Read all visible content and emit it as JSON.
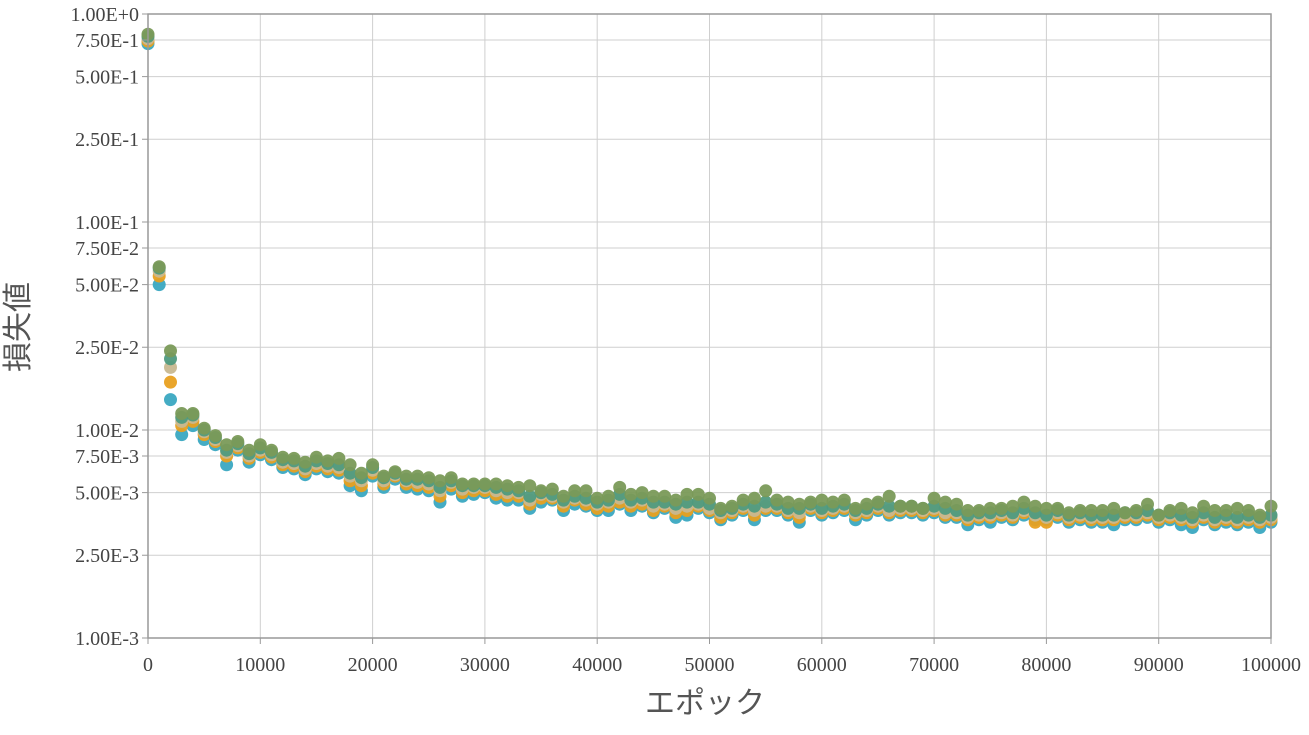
{
  "chart_data": {
    "type": "scatter",
    "title": "",
    "xlabel": "エポック",
    "ylabel": "損失値",
    "xlim": [
      0,
      100000
    ],
    "ylim": [
      0.001,
      1
    ],
    "y_scale": "log",
    "grid": true,
    "x_ticks": [
      0,
      10000,
      20000,
      30000,
      40000,
      50000,
      60000,
      70000,
      80000,
      90000,
      100000
    ],
    "x_tick_labels": [
      "0",
      "10000",
      "20000",
      "30000",
      "40000",
      "50000",
      "60000",
      "70000",
      "80000",
      "90000",
      "100000"
    ],
    "y_ticks": [
      1,
      0.75,
      0.5,
      0.25,
      0.1,
      0.075,
      0.05,
      0.025,
      0.01,
      0.0075,
      0.005,
      0.0025,
      0.001
    ],
    "y_tick_labels": [
      "1.00E+0",
      "7.50E-1",
      "5.00E-1",
      "2.50E-1",
      "1.00E-1",
      "7.50E-2",
      "5.00E-2",
      "2.50E-2",
      "1.00E-2",
      "7.50E-3",
      "5.00E-3",
      "2.50E-3",
      "1.00E-3"
    ],
    "colors": [
      "#3aa8c1",
      "#e8a020",
      "#c8b890",
      "#4f9a7e",
      "#7a9a58"
    ],
    "x": [
      0,
      1000,
      2000,
      3000,
      4000,
      5000,
      6000,
      7000,
      8000,
      9000,
      10000,
      11000,
      12000,
      13000,
      14000,
      15000,
      16000,
      17000,
      18000,
      19000,
      20000,
      21000,
      22000,
      23000,
      24000,
      25000,
      26000,
      27000,
      28000,
      29000,
      30000,
      31000,
      32000,
      33000,
      34000,
      35000,
      36000,
      37000,
      38000,
      39000,
      40000,
      41000,
      42000,
      43000,
      44000,
      45000,
      46000,
      47000,
      48000,
      49000,
      50000,
      51000,
      52000,
      53000,
      54000,
      55000,
      56000,
      57000,
      58000,
      59000,
      60000,
      61000,
      62000,
      63000,
      64000,
      65000,
      66000,
      67000,
      68000,
      69000,
      70000,
      71000,
      72000,
      73000,
      74000,
      75000,
      76000,
      77000,
      78000,
      79000,
      80000,
      81000,
      82000,
      83000,
      84000,
      85000,
      86000,
      87000,
      88000,
      89000,
      90000,
      91000,
      92000,
      93000,
      94000,
      95000,
      96000,
      97000,
      98000,
      99000,
      100000
    ],
    "series": [
      {
        "values": [
          0.72,
          0.05,
          0.014,
          0.0095,
          0.0105,
          0.009,
          0.0085,
          0.0068,
          0.008,
          0.007,
          0.0076,
          0.0072,
          0.0066,
          0.0065,
          0.0061,
          0.0065,
          0.0063,
          0.0062,
          0.0054,
          0.0051,
          0.006,
          0.0053,
          0.0058,
          0.0053,
          0.0052,
          0.0051,
          0.0045,
          0.0052,
          0.0048,
          0.0049,
          0.005,
          0.0047,
          0.0046,
          0.0046,
          0.0042,
          0.0045,
          0.0046,
          0.0041,
          0.0044,
          0.0043,
          0.0041,
          0.0041,
          0.0044,
          0.0041,
          0.0043,
          0.004,
          0.0042,
          0.0038,
          0.0039,
          0.0042,
          0.004,
          0.0037,
          0.0039,
          0.0041,
          0.0037,
          0.0041,
          0.0041,
          0.0039,
          0.0036,
          0.0041,
          0.0039,
          0.004,
          0.0041,
          0.0037,
          0.0039,
          0.0041,
          0.0039,
          0.004,
          0.004,
          0.0039,
          0.004,
          0.0038,
          0.0038,
          0.0035,
          0.0037,
          0.0036,
          0.0038,
          0.0037,
          0.0039,
          0.0037,
          0.0037,
          0.0038,
          0.0036,
          0.0037,
          0.0036,
          0.0036,
          0.0035,
          0.0037,
          0.0037,
          0.0038,
          0.0036,
          0.0037,
          0.0035,
          0.0034,
          0.0037,
          0.0035,
          0.0036,
          0.0035,
          0.0036,
          0.0034,
          0.0036
        ]
      },
      {
        "values": [
          0.74,
          0.055,
          0.017,
          0.0105,
          0.011,
          0.0095,
          0.0088,
          0.0075,
          0.0082,
          0.0073,
          0.0078,
          0.0074,
          0.0068,
          0.0067,
          0.0063,
          0.0067,
          0.0065,
          0.0064,
          0.0057,
          0.0054,
          0.0062,
          0.0055,
          0.006,
          0.0055,
          0.0054,
          0.0053,
          0.0048,
          0.0054,
          0.005,
          0.0051,
          0.0051,
          0.0049,
          0.0048,
          0.0048,
          0.0044,
          0.0047,
          0.0047,
          0.0043,
          0.0046,
          0.0044,
          0.0042,
          0.0043,
          0.0045,
          0.0043,
          0.0044,
          0.0041,
          0.0043,
          0.004,
          0.0041,
          0.0043,
          0.0041,
          0.0038,
          0.004,
          0.0042,
          0.0039,
          0.0042,
          0.0042,
          0.004,
          0.0038,
          0.0042,
          0.004,
          0.0041,
          0.0042,
          0.0039,
          0.004,
          0.0042,
          0.004,
          0.0041,
          0.0041,
          0.004,
          0.0041,
          0.0039,
          0.0039,
          0.0037,
          0.0038,
          0.0038,
          0.0039,
          0.0038,
          0.004,
          0.0036,
          0.0036,
          0.0039,
          0.0037,
          0.0038,
          0.0037,
          0.0037,
          0.0037,
          0.0038,
          0.0038,
          0.0039,
          0.0037,
          0.0038,
          0.0037,
          0.0036,
          0.0038,
          0.0036,
          0.0037,
          0.0036,
          0.0037,
          0.0036,
          0.0037
        ]
      },
      {
        "values": [
          0.76,
          0.058,
          0.02,
          0.011,
          0.0115,
          0.0098,
          0.009,
          0.0078,
          0.0084,
          0.0075,
          0.008,
          0.0076,
          0.007,
          0.0069,
          0.0065,
          0.0069,
          0.0067,
          0.0066,
          0.006,
          0.0057,
          0.0064,
          0.0057,
          0.0061,
          0.0057,
          0.0056,
          0.0055,
          0.0051,
          0.0056,
          0.0052,
          0.0053,
          0.0053,
          0.0051,
          0.005,
          0.005,
          0.0046,
          0.0049,
          0.0048,
          0.0045,
          0.0047,
          0.0046,
          0.0044,
          0.0045,
          0.0047,
          0.0045,
          0.0046,
          0.0043,
          0.0044,
          0.0042,
          0.0043,
          0.0044,
          0.0042,
          0.004,
          0.0041,
          0.0043,
          0.0041,
          0.0043,
          0.0043,
          0.0041,
          0.004,
          0.0043,
          0.0041,
          0.0042,
          0.0043,
          0.004,
          0.0041,
          0.0043,
          0.0041,
          0.0042,
          0.0042,
          0.0041,
          0.0042,
          0.004,
          0.004,
          0.0038,
          0.0039,
          0.0039,
          0.004,
          0.0039,
          0.0041,
          0.0039,
          0.0038,
          0.004,
          0.0038,
          0.0039,
          0.0038,
          0.0038,
          0.0038,
          0.0039,
          0.0039,
          0.004,
          0.0038,
          0.0039,
          0.0038,
          0.0037,
          0.0039,
          0.0037,
          0.0038,
          0.0037,
          0.0038,
          0.0037,
          0.0038
        ]
      },
      {
        "values": [
          0.78,
          0.06,
          0.022,
          0.0115,
          0.0118,
          0.01,
          0.0092,
          0.008,
          0.0086,
          0.0077,
          0.0082,
          0.0078,
          0.0072,
          0.0071,
          0.0067,
          0.0071,
          0.0069,
          0.0068,
          0.0062,
          0.0059,
          0.0066,
          0.0059,
          0.0062,
          0.0058,
          0.0058,
          0.0057,
          0.0053,
          0.0057,
          0.0054,
          0.0054,
          0.0054,
          0.0053,
          0.0052,
          0.0051,
          0.0048,
          0.005,
          0.0049,
          0.0046,
          0.0048,
          0.0047,
          0.0045,
          0.0046,
          0.0049,
          0.0046,
          0.0047,
          0.0045,
          0.0045,
          0.0044,
          0.0045,
          0.0045,
          0.0044,
          0.0041,
          0.0042,
          0.0044,
          0.0043,
          0.0045,
          0.0044,
          0.0042,
          0.0042,
          0.0044,
          0.0042,
          0.0043,
          0.0044,
          0.0041,
          0.0042,
          0.0044,
          0.0043,
          0.0043,
          0.0043,
          0.0042,
          0.0043,
          0.0042,
          0.0041,
          0.0039,
          0.004,
          0.004,
          0.0041,
          0.004,
          0.0042,
          0.004,
          0.0039,
          0.0041,
          0.0039,
          0.004,
          0.0039,
          0.0039,
          0.0039,
          0.004,
          0.004,
          0.0041,
          0.0039,
          0.004,
          0.0039,
          0.0038,
          0.004,
          0.0038,
          0.0039,
          0.0038,
          0.0039,
          0.0038,
          0.0039
        ]
      },
      {
        "values": [
          0.8,
          0.061,
          0.024,
          0.012,
          0.012,
          0.0102,
          0.0094,
          0.0085,
          0.0088,
          0.008,
          0.0085,
          0.008,
          0.0074,
          0.0073,
          0.007,
          0.0074,
          0.0071,
          0.0073,
          0.0068,
          0.0062,
          0.0068,
          0.006,
          0.0063,
          0.006,
          0.006,
          0.0059,
          0.0057,
          0.0059,
          0.0055,
          0.0055,
          0.0055,
          0.0055,
          0.0054,
          0.0053,
          0.0054,
          0.0051,
          0.0052,
          0.0048,
          0.0051,
          0.0051,
          0.0047,
          0.0048,
          0.0053,
          0.0049,
          0.005,
          0.0048,
          0.0048,
          0.0046,
          0.0049,
          0.0049,
          0.0047,
          0.0042,
          0.0043,
          0.0046,
          0.0047,
          0.0051,
          0.0046,
          0.0045,
          0.0044,
          0.0045,
          0.0046,
          0.0045,
          0.0046,
          0.0042,
          0.0044,
          0.0045,
          0.0048,
          0.0043,
          0.0043,
          0.0042,
          0.0047,
          0.0045,
          0.0044,
          0.0041,
          0.0041,
          0.0042,
          0.0042,
          0.0043,
          0.0045,
          0.0043,
          0.0042,
          0.0042,
          0.004,
          0.0041,
          0.0041,
          0.0041,
          0.0042,
          0.004,
          0.0041,
          0.0044,
          0.0039,
          0.0041,
          0.0042,
          0.004,
          0.0043,
          0.0041,
          0.0041,
          0.0042,
          0.0041,
          0.0039,
          0.0043
        ]
      }
    ]
  }
}
